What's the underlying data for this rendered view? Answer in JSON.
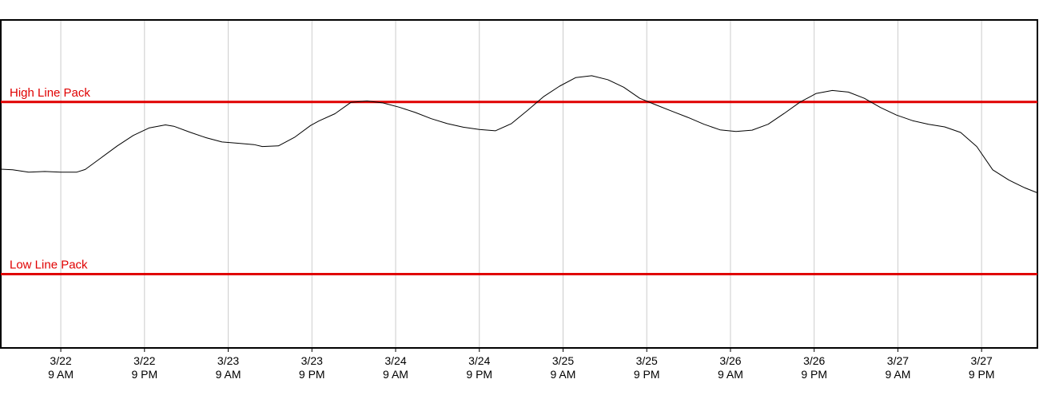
{
  "chart_data": {
    "type": "line",
    "title": "",
    "xlabel": "",
    "ylabel": "",
    "x_tick_labels": [
      {
        "date": "3/22",
        "time": "9 AM"
      },
      {
        "date": "3/22",
        "time": "9 PM"
      },
      {
        "date": "3/23",
        "time": "9 AM"
      },
      {
        "date": "3/23",
        "time": "9 PM"
      },
      {
        "date": "3/24",
        "time": "9 AM"
      },
      {
        "date": "3/24",
        "time": "9 PM"
      },
      {
        "date": "3/25",
        "time": "9 AM"
      },
      {
        "date": "3/25",
        "time": "9 PM"
      },
      {
        "date": "3/26",
        "time": "9 AM"
      },
      {
        "date": "3/26",
        "time": "9 PM"
      },
      {
        "date": "3/27",
        "time": "9 AM"
      },
      {
        "date": "3/27",
        "time": "9 PM"
      }
    ],
    "x_hours_per_tick": 12,
    "xlim": [
      -8.6,
      140.0
    ],
    "ylim": [
      0,
      100
    ],
    "grid": {
      "vertical": true,
      "horizontal": false
    },
    "reference_lines": [
      {
        "label": "High Line Pack",
        "value": 75,
        "color": "#e00000"
      },
      {
        "label": "Low Line Pack",
        "value": 22.5,
        "color": "#e00000"
      }
    ],
    "series": [
      {
        "color": "#000000",
        "x": [
          -8.6,
          -6.9,
          -4.6,
          -2.3,
          0.0,
          2.3,
          3.5,
          5.8,
          8.1,
          10.4,
          12.7,
          15.0,
          16.2,
          18.5,
          20.8,
          23.1,
          25.4,
          27.7,
          28.9,
          31.2,
          33.5,
          35.8,
          37.0,
          39.3,
          41.6,
          43.9,
          46.2,
          48.5,
          50.8,
          53.1,
          55.4,
          57.7,
          60.0,
          62.3,
          64.6,
          66.9,
          69.2,
          71.5,
          73.8,
          76.1,
          78.4,
          80.7,
          83.0,
          85.3,
          87.6,
          89.9,
          92.2,
          94.5,
          96.8,
          99.1,
          101.4,
          103.7,
          106.0,
          108.3,
          110.6,
          112.9,
          115.2,
          117.5,
          119.8,
          122.1,
          124.4,
          126.7,
          129.0,
          131.3,
          133.6,
          135.9,
          138.2,
          140.0
        ],
        "values": [
          54.5,
          54.3,
          53.6,
          53.8,
          53.6,
          53.6,
          54.4,
          58.0,
          61.6,
          64.8,
          67.1,
          68.0,
          67.6,
          65.8,
          64.1,
          62.8,
          62.4,
          62.0,
          61.4,
          61.6,
          64.2,
          67.8,
          69.2,
          71.4,
          74.9,
          75.3,
          74.7,
          73.4,
          71.8,
          69.9,
          68.4,
          67.3,
          66.6,
          66.2,
          68.4,
          72.4,
          76.6,
          79.8,
          82.4,
          83.0,
          81.8,
          79.5,
          76.1,
          74.1,
          72.2,
          70.3,
          68.2,
          66.5,
          66.0,
          66.4,
          68.2,
          71.5,
          75.0,
          77.6,
          78.5,
          78.0,
          76.1,
          73.3,
          71.0,
          69.3,
          68.2,
          67.4,
          65.7,
          61.4,
          54.3,
          51.2,
          48.8,
          47.3
        ]
      }
    ]
  }
}
